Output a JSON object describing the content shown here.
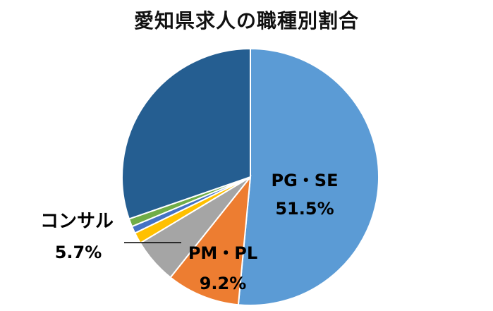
{
  "chart_data": {
    "type": "pie",
    "title": "愛知県求人の職種別割合",
    "start": "12 o'clock",
    "direction": "clockwise",
    "slices": [
      {
        "label": "PG・SE",
        "value": 51.5,
        "color": "#5B9BD5",
        "label_text": "51.5%"
      },
      {
        "label": "PM・PL",
        "value": 9.2,
        "color": "#ED7D31",
        "label_text": "9.2%"
      },
      {
        "label": "コンサル",
        "value": 5.7,
        "color": "#A5A5A5",
        "label_text": "5.7%"
      },
      {
        "label": "",
        "value": 1.4,
        "color": "#FFC000"
      },
      {
        "label": "",
        "value": 0.9,
        "color": "#4472C4"
      },
      {
        "label": "",
        "value": 1.0,
        "color": "#70AD47"
      },
      {
        "label": "",
        "value": 30.3,
        "color": "#255E91"
      }
    ]
  }
}
